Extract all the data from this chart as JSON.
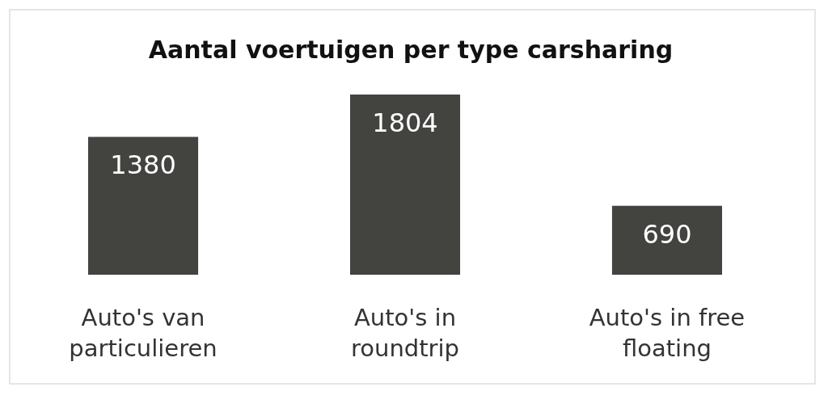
{
  "chart_data": {
    "type": "bar",
    "title": "Aantal voertuigen per type carsharing",
    "categories": [
      "Auto's van particulieren",
      "Auto's in roundtrip",
      "Auto's in free floating"
    ],
    "values": [
      1380,
      1804,
      690
    ],
    "color": "#434340",
    "data_labels": true
  }
}
